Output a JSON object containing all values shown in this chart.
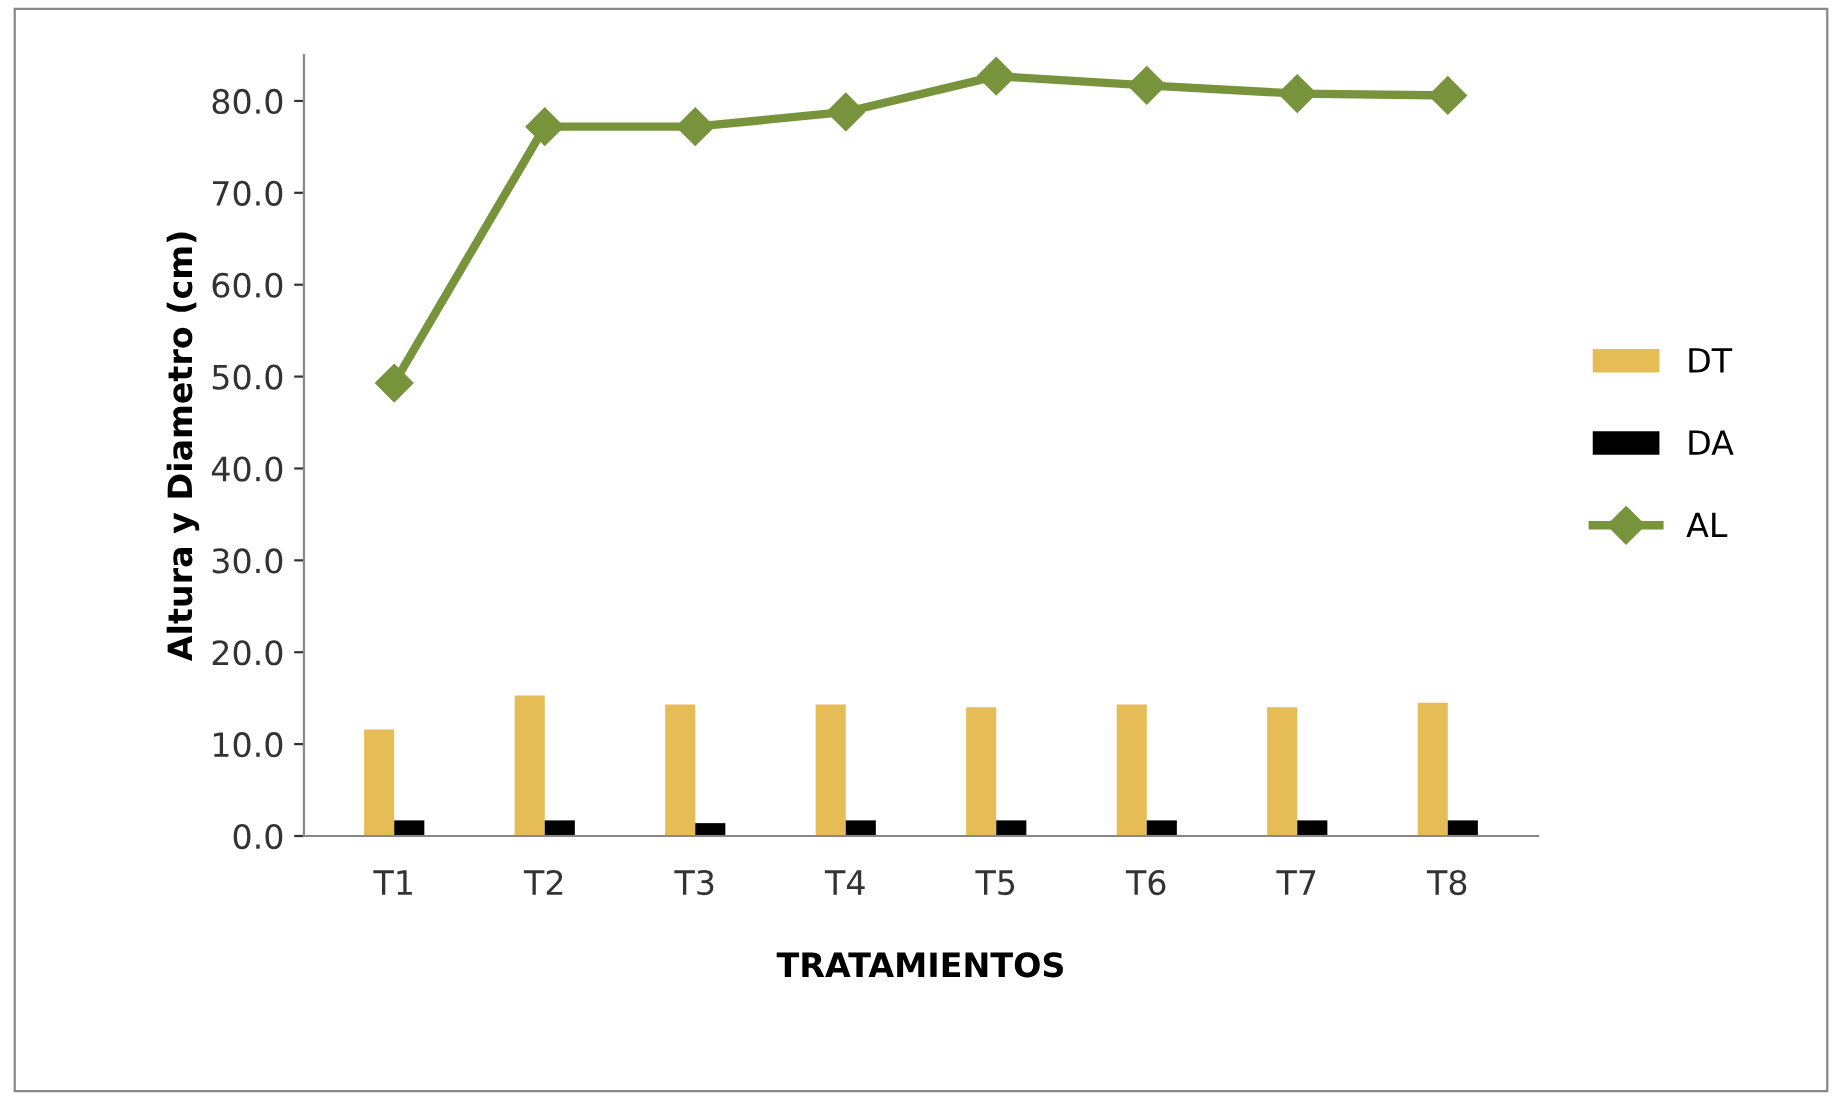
{
  "chart_data": {
    "type": "bar",
    "xlabel": "TRATAMIENTOS",
    "ylabel": "Altura y Diametro (cm)",
    "categories": [
      "T1",
      "T2",
      "T3",
      "T4",
      "T5",
      "T6",
      "T7",
      "T8"
    ],
    "series": [
      {
        "name": "DT",
        "color": "#e6bc57",
        "values": [
          11.6,
          15.3,
          14.3,
          14.3,
          14.0,
          14.3,
          14.0,
          14.5
        ]
      },
      {
        "name": "DA",
        "color": "#000000",
        "values": [
          1.7,
          1.7,
          1.4,
          1.7,
          1.7,
          1.7,
          1.7,
          1.7
        ]
      },
      {
        "name": "AL",
        "type": "line",
        "color": "#77933c",
        "marker": "diamond",
        "values": [
          49.3,
          77.2,
          77.2,
          78.8,
          82.7,
          81.7,
          80.8,
          80.6
        ]
      }
    ],
    "ylim": [
      0,
      85
    ],
    "yticks": [
      {
        "value": 0,
        "label": "0.0"
      },
      {
        "value": 10,
        "label": "10.0"
      },
      {
        "value": 20,
        "label": "20.0"
      },
      {
        "value": 30,
        "label": "30.0"
      },
      {
        "value": 40,
        "label": "40.0"
      },
      {
        "value": 50,
        "label": "50.0"
      },
      {
        "value": 60,
        "label": "60.0"
      },
      {
        "value": 70,
        "label": "70.0"
      },
      {
        "value": 80,
        "label": "80.0"
      }
    ],
    "grid": false,
    "legend": "right"
  }
}
